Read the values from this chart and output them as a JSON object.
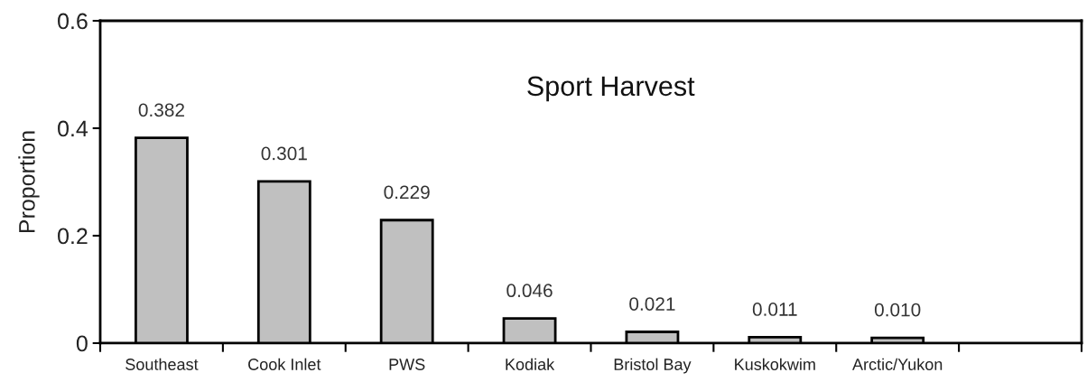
{
  "chart_data": {
    "type": "bar",
    "title": "Sport Harvest",
    "ylabel": "Proportion",
    "categories": [
      "Southeast",
      "Cook Inlet",
      "PWS",
      "Kodiak",
      "Bristol Bay",
      "Kuskokwim",
      "Arctic/Yukon",
      null
    ],
    "values": [
      0.382,
      0.301,
      0.229,
      0.046,
      0.021,
      0.011,
      0.01,
      null
    ],
    "value_labels": [
      "0.382",
      "0.301",
      "0.229",
      "0.046",
      "0.021",
      "0.011",
      "0.010",
      null
    ],
    "color": "#c0c0c0",
    "ylim": [
      0,
      0.6
    ],
    "yticks": [
      0,
      0.2,
      0.4,
      0.6
    ],
    "grid": false,
    "legend": false
  }
}
